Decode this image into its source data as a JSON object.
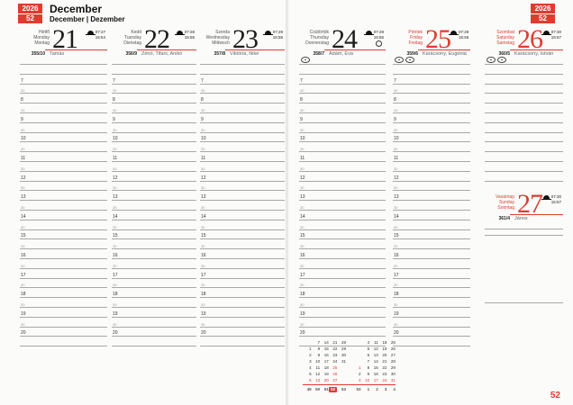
{
  "page": {
    "year": "2026",
    "week": "52",
    "month_title": "December",
    "month_subtitle": "December | Dezember",
    "page_number": "52"
  },
  "colors": {
    "accent": "#e23b2e",
    "grid_line": "#a8a8a8"
  },
  "schedule": {
    "hours": [
      "7",
      "8",
      "9",
      "10",
      "11",
      "12",
      "13",
      "14",
      "15",
      "16",
      "17",
      "18",
      "19",
      "20"
    ],
    "half_hour_label": "30"
  },
  "days": [
    {
      "weekday": [
        "Hétfő",
        "Monday",
        "Montag"
      ],
      "date": "21",
      "sunrise": "07:27",
      "sunset": "15:54",
      "day_of_year": "355/10",
      "nameday": "Tamás",
      "holiday": false,
      "event_icons": 0,
      "moon_icon": false
    },
    {
      "weekday": [
        "Kedd",
        "Tuesday",
        "Dienstag"
      ],
      "date": "22",
      "sunrise": "07:28",
      "sunset": "15:55",
      "day_of_year": "356/9",
      "nameday": "Zénó, Tifani, Anikó",
      "holiday": false,
      "event_icons": 0,
      "moon_icon": false
    },
    {
      "weekday": [
        "Szerda",
        "Wednesday",
        "Mittwoch"
      ],
      "date": "23",
      "sunrise": "07:29",
      "sunset": "15:55",
      "day_of_year": "357/8",
      "nameday": "Viktória, Niké",
      "holiday": false,
      "event_icons": 0,
      "moon_icon": false
    },
    {
      "weekday": [
        "Csütörtök",
        "Thursday",
        "Donnerstag"
      ],
      "date": "24",
      "sunrise": "07:29",
      "sunset": "15:56",
      "day_of_year": "358/7",
      "nameday": "Ádám, Éva",
      "holiday": false,
      "event_icons": 1,
      "moon_icon": true
    },
    {
      "weekday": [
        "Péntek",
        "Friday",
        "Freitag"
      ],
      "date": "25",
      "sunrise": "07:29",
      "sunset": "15:56",
      "day_of_year": "359/6",
      "nameday": "Karácsony, Eugénia",
      "holiday": true,
      "event_icons": 2,
      "moon_icon": false
    },
    {
      "weekday": [
        "Szombat",
        "Saturday",
        "Samstag"
      ],
      "date": "26",
      "sunrise": "07:30",
      "sunset": "15:57",
      "day_of_year": "360/5",
      "nameday": "Karácsony, István",
      "holiday": true,
      "event_icons": 2,
      "moon_icon": false
    },
    {
      "weekday": [
        "Vasárnap",
        "Sunday",
        "Sonntag"
      ],
      "date": "27",
      "sunrise": "07:30",
      "sunset": "15:57",
      "day_of_year": "361/4",
      "nameday": "János",
      "holiday": true,
      "event_icons": 0,
      "moon_icon": false
    }
  ],
  "mini_calendar": {
    "months": [
      {
        "name": "december",
        "rows": [
          [
            "",
            "7",
            "14",
            "21",
            "28"
          ],
          [
            "1",
            "8",
            "15",
            "22",
            "29"
          ],
          [
            "2",
            "9",
            "16",
            "23",
            "30"
          ],
          [
            "3",
            "10",
            "17",
            "24",
            "31"
          ],
          [
            "4",
            "11",
            "18",
            "25",
            ""
          ],
          [
            "5",
            "12",
            "19",
            "26",
            ""
          ],
          [
            "6",
            "13",
            "20",
            "27",
            ""
          ]
        ],
        "red_days": [
          "6",
          "13",
          "20",
          "25",
          "26",
          "27"
        ]
      },
      {
        "name": "january",
        "rows": [
          [
            "",
            "4",
            "11",
            "18",
            "25"
          ],
          [
            "",
            "5",
            "12",
            "19",
            "26"
          ],
          [
            "",
            "6",
            "13",
            "20",
            "27"
          ],
          [
            "",
            "7",
            "14",
            "21",
            "28"
          ],
          [
            "1",
            "8",
            "15",
            "22",
            "29"
          ],
          [
            "2",
            "9",
            "16",
            "23",
            "30"
          ],
          [
            "3",
            "10",
            "17",
            "24",
            "31"
          ]
        ],
        "red_days": [
          "1",
          "3",
          "10",
          "17",
          "24",
          "31"
        ]
      }
    ],
    "week_numbers": [
      [
        "49",
        "50",
        "51",
        "52",
        "53"
      ],
      [
        "53",
        "1",
        "2",
        "3",
        "4"
      ]
    ],
    "current_week": "52"
  }
}
